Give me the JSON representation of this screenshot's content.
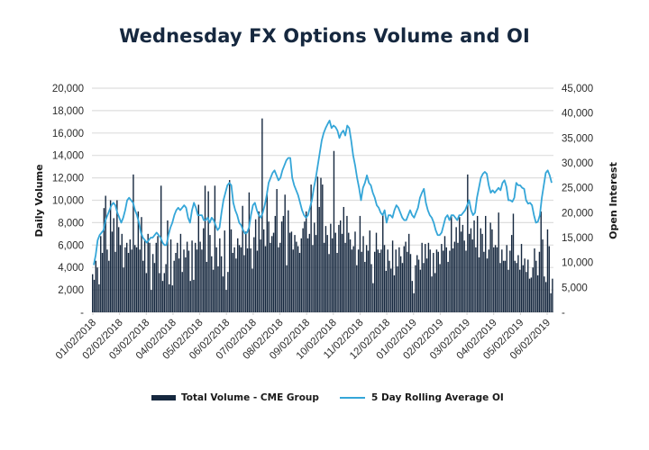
{
  "chart_data": {
    "type": "bar+line",
    "title": "Wednesday FX Options Volume and OI",
    "ylabel": "Daily Volume",
    "y2label": "Open Interest",
    "ylim": [
      0,
      20000
    ],
    "y2lim": [
      0,
      45000
    ],
    "yticks": [
      "-",
      "2,000",
      "4,000",
      "6,000",
      "8,000",
      "10,000",
      "12,000",
      "14,000",
      "16,000",
      "18,000",
      "20,000"
    ],
    "y2ticks": [
      "-",
      "5,000",
      "10,000",
      "15,000",
      "20,000",
      "25,000",
      "30,000",
      "35,000",
      "40,000",
      "45,000"
    ],
    "xticks": [
      "01/02/2018",
      "02/02/2018",
      "03/02/2018",
      "04/02/2018",
      "05/02/2018",
      "06/02/2018",
      "07/02/2018",
      "08/02/2018",
      "09/02/2018",
      "10/02/2018",
      "11/02/2018",
      "12/02/2018",
      "01/02/2019",
      "02/02/2019",
      "03/02/2019",
      "04/02/2019",
      "05/02/2019",
      "06/02/2019"
    ],
    "grid": true,
    "legend_position": "bottom",
    "colors": {
      "bar": "#16283f",
      "line": "#35a6d8"
    },
    "series": [
      {
        "name": "Total Volume - CME Group",
        "type": "bar",
        "axis": "left",
        "values": [
          3400,
          2900,
          4600,
          4000,
          2500,
          6800,
          5300,
          9300,
          10400,
          5600,
          4600,
          10000,
          7200,
          8400,
          5400,
          10000,
          7600,
          6000,
          7000,
          4000,
          5800,
          6200,
          5300,
          6500,
          5600,
          12300,
          6000,
          5800,
          9000,
          5600,
          8500,
          4600,
          6400,
          3500,
          7000,
          6200,
          2000,
          5200,
          4400,
          6200,
          6800,
          3500,
          11300,
          2800,
          3500,
          4300,
          8200,
          2500,
          6500,
          2400,
          4600,
          5300,
          6200,
          4800,
          7000,
          3600,
          5600,
          4900,
          6300,
          5500,
          2800,
          6400,
          2900,
          6200,
          5600,
          9600,
          6300,
          5600,
          7500,
          11300,
          4500,
          10800,
          6900,
          5000,
          3800,
          11300,
          5800,
          4100,
          6600,
          5000,
          3200,
          7300,
          2000,
          3600,
          11800,
          7400,
          5300,
          5800,
          4800,
          6600,
          6000,
          5800,
          9500,
          5100,
          7200,
          5700,
          10700,
          5700,
          3900,
          6700,
          8300,
          5500,
          9000,
          6500,
          17300,
          7400,
          5900,
          10800,
          8100,
          6200,
          6800,
          7100,
          8600,
          11000,
          5800,
          6200,
          8100,
          8600,
          10500,
          4200,
          9100,
          7100,
          7200,
          5600,
          6900,
          6300,
          5900,
          5300,
          6600,
          7500,
          8100,
          9000,
          6600,
          7000,
          11400,
          6000,
          8000,
          6900,
          12100,
          9400,
          12000,
          11400,
          6200,
          7700,
          6900,
          5200,
          7900,
          6600,
          14400,
          7100,
          5300,
          7800,
          8200,
          7000,
          9400,
          6200,
          8600,
          7100,
          6500,
          5600,
          5900,
          7200,
          4200,
          5600,
          8600,
          5400,
          6800,
          4500,
          6000,
          5500,
          7300,
          4300,
          2600,
          5400,
          7100,
          5600,
          5300,
          5600,
          8800,
          6000,
          3700,
          5600,
          4600,
          3900,
          6400,
          3300,
          5600,
          4100,
          5800,
          5000,
          4400,
          5900,
          6300,
          5400,
          7000,
          5200,
          2800,
          1700,
          4200,
          5100,
          4700,
          3800,
          6200,
          4400,
          6100,
          4800,
          6200,
          5600,
          3200,
          5300,
          3500,
          5600,
          5400,
          4300,
          6100,
          5500,
          6800,
          5800,
          4500,
          5500,
          8600,
          5700,
          6300,
          7600,
          6200,
          8500,
          7200,
          7800,
          6400,
          5500,
          12300,
          7000,
          7500,
          6500,
          8200,
          5800,
          8600,
          4900,
          7500,
          7000,
          5400,
          8600,
          4800,
          5600,
          8000,
          7400,
          5800,
          6000,
          5800,
          8900,
          4400,
          5600,
          4600,
          4600,
          6000,
          3800,
          5500,
          6900,
          8800,
          4600,
          4400,
          5100,
          3800,
          6100,
          4200,
          4800,
          3600,
          4700,
          3000,
          3100,
          4000,
          5700,
          4600,
          3300,
          5400,
          9000,
          6500,
          3200,
          2700,
          7400,
          5900,
          1700,
          3000
        ],
        "note": "approximate daily volumes read from bar heights"
      },
      {
        "name": "5 Day Rolling Average OI",
        "type": "line",
        "axis": "right",
        "values": [
          9500,
          11500,
          14500,
          15500,
          16000,
          16500,
          18500,
          19500,
          20500,
          21500,
          22000,
          21500,
          20000,
          19000,
          18000,
          19000,
          20500,
          22500,
          23000,
          22500,
          22000,
          20500,
          19500,
          18000,
          16000,
          15000,
          14500,
          14000,
          14500,
          15000,
          15000,
          15500,
          16000,
          15500,
          15000,
          14000,
          13500,
          13500,
          15500,
          17000,
          18000,
          19500,
          20500,
          21000,
          20500,
          21000,
          21500,
          21000,
          19000,
          18000,
          20500,
          22000,
          21000,
          19500,
          19500,
          19500,
          18500,
          18500,
          19000,
          18000,
          19000,
          18500,
          17500,
          16500,
          17000,
          20000,
          22500,
          24000,
          25500,
          26000,
          25500,
          22000,
          20500,
          19500,
          18000,
          17500,
          16500,
          15800,
          16000,
          17000,
          19500,
          21500,
          22000,
          20500,
          19500,
          19000,
          20000,
          21500,
          23500,
          26000,
          27000,
          28000,
          28500,
          27500,
          26500,
          27000,
          28500,
          29500,
          30500,
          31000,
          31000,
          27000,
          25500,
          24500,
          23500,
          22000,
          20500,
          19500,
          19000,
          19500,
          21000,
          22500,
          25000,
          27000,
          29500,
          32000,
          34500,
          36000,
          37000,
          37800,
          38500,
          37000,
          37500,
          37200,
          36500,
          35000,
          36000,
          36500,
          35500,
          37500,
          37000,
          34500,
          31500,
          29500,
          27000,
          25000,
          22500,
          25000,
          26000,
          27500,
          26000,
          25500,
          24000,
          23000,
          21500,
          21000,
          20000,
          19500,
          20500,
          18000,
          19500,
          19500,
          19000,
          20500,
          21500,
          21000,
          20000,
          19000,
          18500,
          18500,
          19500,
          20500,
          19500,
          19000,
          20000,
          21000,
          23000,
          24000,
          24800,
          22000,
          20500,
          19500,
          19000,
          18000,
          16500,
          15500,
          15500,
          16000,
          17500,
          19000,
          19500,
          18500,
          19500,
          19500,
          19000,
          18500,
          19500,
          19500,
          20000,
          20500,
          21500,
          22500,
          20500,
          19500,
          20000,
          23000,
          25000,
          27000,
          27800,
          28200,
          27800,
          25500,
          24000,
          24500,
          24000,
          24500,
          25000,
          24500,
          26000,
          26500,
          25200,
          22500,
          22500,
          22200,
          23000,
          26000,
          25500,
          25500,
          25000,
          24800,
          22500,
          21800,
          22000,
          21500,
          19500,
          18000,
          18200,
          19500,
          23000,
          25500,
          28000,
          28500,
          27500,
          26000
        ]
      }
    ]
  },
  "legend": {
    "bar_label": "Total Volume - CME Group",
    "line_label": "5 Day Rolling Average OI"
  }
}
